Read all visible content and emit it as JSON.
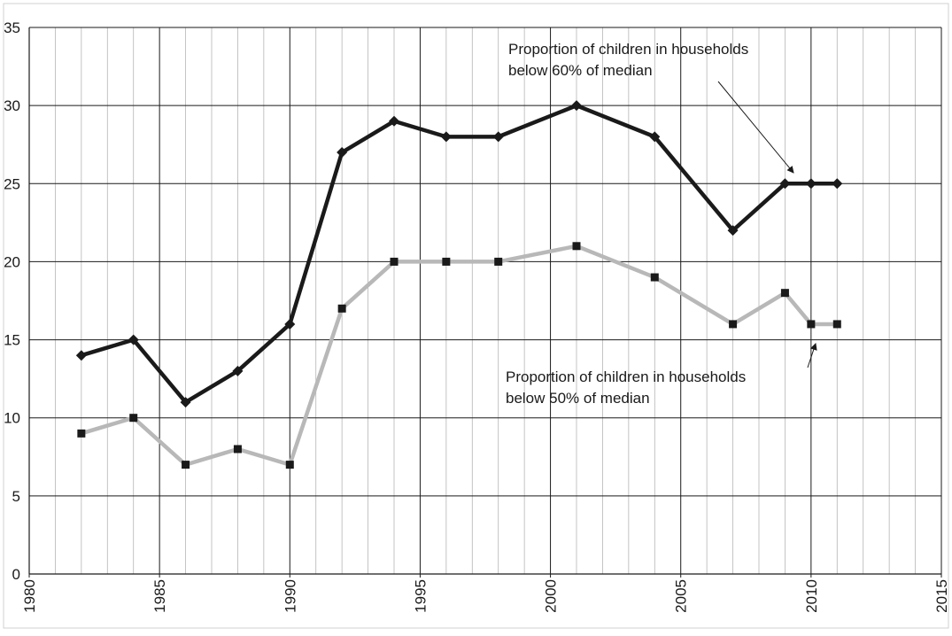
{
  "chart_data": {
    "type": "line",
    "title": "",
    "xlabel": "",
    "ylabel": "",
    "xlim": [
      1980,
      2015
    ],
    "ylim": [
      0,
      35
    ],
    "x_ticks": [
      "1980",
      "1985",
      "1990",
      "1995",
      "2000",
      "2005",
      "2010",
      "2015"
    ],
    "y_ticks": [
      "0",
      "5",
      "10",
      "15",
      "20",
      "25",
      "30",
      "35"
    ],
    "grid": true,
    "legend": "none",
    "series": [
      {
        "marker": "diamond",
        "color": "#1a1a1a",
        "x": [
          1982,
          1984,
          1986,
          1988,
          1990,
          1992,
          1994,
          1996,
          1998,
          2001,
          2004,
          2007,
          2009,
          2010,
          2011
        ],
        "values": [
          14,
          15,
          11,
          13,
          16,
          27,
          29,
          28,
          28,
          30,
          28,
          22,
          25,
          25,
          25
        ]
      },
      {
        "marker": "square",
        "color": "#b8b8b8",
        "x": [
          1982,
          1984,
          1986,
          1988,
          1990,
          1992,
          1994,
          1996,
          1998,
          2001,
          2004,
          2007,
          2009,
          2010,
          2011
        ],
        "values": [
          9,
          10,
          7,
          8,
          7,
          17,
          20,
          20,
          20,
          21,
          19,
          16,
          18,
          16,
          16
        ]
      }
    ],
    "annotations": [
      {
        "lines": [
          "Proportion of children in households",
          "below 60% of median"
        ],
        "points_to": [
          2009,
          25
        ]
      },
      {
        "lines": [
          "Proportion of children in households",
          "below 50% of median"
        ],
        "points_to": [
          2010,
          16
        ]
      }
    ]
  }
}
